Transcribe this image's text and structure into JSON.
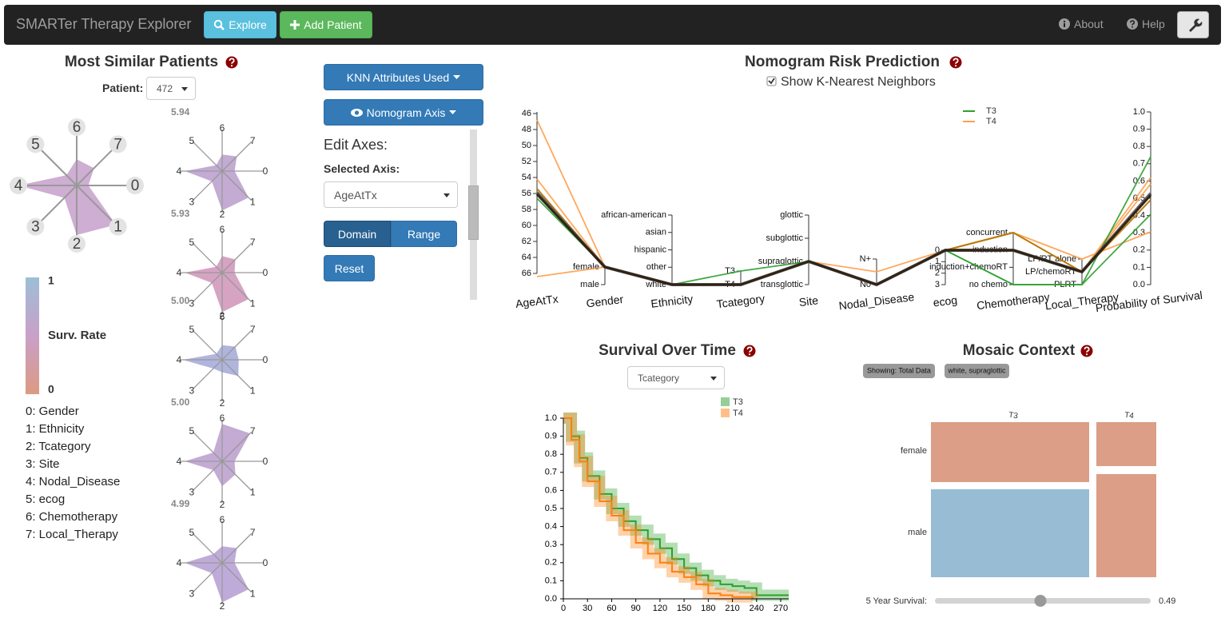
{
  "navbar": {
    "brand": "SMARTer Therapy Explorer",
    "explore": "Explore",
    "add_patient": "Add Patient",
    "about": "About",
    "help": "Help"
  },
  "similar_patients": {
    "title": "Most Similar Patients",
    "patient_label": "Patient:",
    "patient_value": "472",
    "radar_axes": [
      "0",
      "1",
      "2",
      "3",
      "4",
      "5",
      "6",
      "7"
    ],
    "scores": [
      "5.94",
      "5.93",
      "5.00",
      "5.00",
      "4.99"
    ],
    "legend": {
      "max": "1",
      "label": "Surv. Rate",
      "min": "0"
    },
    "attributes": [
      "0: Gender",
      "1: Ethnicity",
      "2: Tcategory",
      "3: Site",
      "4: Nodal_Disease",
      "5: ecog",
      "6: Chemotherapy",
      "7: Local_Therapy"
    ]
  },
  "controls": {
    "knn": "KNN Attributes Used",
    "nomogram_axis": "Nomogram Axis",
    "edit_axes": "Edit Axes:",
    "selected_axis_label": "Selected Axis:",
    "selected_axis": "AgeAtTx",
    "domain": "Domain",
    "range": "Range",
    "reset": "Reset"
  },
  "nomogram": {
    "title": "Nomogram Risk Prediction",
    "checkbox_label": "Show K-Nearest Neighbors",
    "legend": [
      "T3",
      "T4"
    ],
    "axes": [
      {
        "name": "AgeAtTx",
        "ticks": [
          "46",
          "48",
          "50",
          "52",
          "54",
          "56",
          "58",
          "60",
          "62",
          "64",
          "66"
        ]
      },
      {
        "name": "Gender",
        "ticks": [
          "female",
          "male"
        ]
      },
      {
        "name": "Ethnicity",
        "ticks": [
          "african-american",
          "asian",
          "hispanic",
          "other",
          "white"
        ]
      },
      {
        "name": "Tcategory",
        "ticks": [
          "T3",
          "T4"
        ]
      },
      {
        "name": "Site",
        "ticks": [
          "glottic",
          "subglottic",
          "supraglottic",
          "transglottic"
        ]
      },
      {
        "name": "Nodal_Disease",
        "ticks": [
          "N+",
          "N0"
        ]
      },
      {
        "name": "ecog",
        "ticks": [
          "0",
          "1",
          "2",
          "3"
        ]
      },
      {
        "name": "Chemotherapy",
        "ticks": [
          "concurrent",
          "induction",
          "induction+chemoRT",
          "no chemo"
        ]
      },
      {
        "name": "Local_Therapy",
        "ticks": [
          "LP/RT alone",
          "LP/chemoRT",
          "PLRT"
        ]
      },
      {
        "name": "Probability of Survival",
        "ticks": [
          "1.0",
          "0.9",
          "0.8",
          "0.7",
          "0.6",
          "0.5",
          "0.4",
          "0.3",
          "0.2",
          "0.1",
          "0.0"
        ]
      }
    ]
  },
  "survival": {
    "title": "Survival Over Time",
    "select": "Tcategory",
    "xticks": [
      0,
      30,
      60,
      90,
      120,
      150,
      180,
      210,
      240,
      270
    ],
    "yticks": [
      "0.0",
      "0.1",
      "0.2",
      "0.3",
      "0.4",
      "0.5",
      "0.6",
      "0.7",
      "0.8",
      "0.9",
      "1.0"
    ],
    "series": [
      {
        "name": "T3",
        "color": "#2ca02c",
        "x": [
          0,
          10,
          20,
          30,
          45,
          60,
          75,
          90,
          105,
          120,
          135,
          150,
          165,
          180,
          195,
          210,
          225,
          240,
          280
        ],
        "y": [
          1,
          0.9,
          0.78,
          0.68,
          0.58,
          0.5,
          0.43,
          0.38,
          0.33,
          0.28,
          0.22,
          0.17,
          0.13,
          0.1,
          0.08,
          0.07,
          0.06,
          0.02,
          0.02
        ]
      },
      {
        "name": "T4",
        "color": "#ff7f0e",
        "x": [
          0,
          10,
          20,
          30,
          45,
          60,
          75,
          90,
          105,
          120,
          135,
          150,
          165,
          180,
          195,
          210,
          230,
          235
        ],
        "y": [
          1,
          0.88,
          0.76,
          0.65,
          0.54,
          0.46,
          0.38,
          0.31,
          0.25,
          0.2,
          0.15,
          0.12,
          0.08,
          0.03,
          0.02,
          0.01,
          0.01,
          0
        ]
      }
    ]
  },
  "mosaic": {
    "title": "Mosaic Context",
    "tags": [
      "Showing: Total Data",
      "white, supraglottic"
    ],
    "columns": [
      "T3",
      "T4"
    ],
    "rows": [
      "female",
      "male"
    ],
    "slider_label": "5 Year Survival:",
    "slider_value": "0.49"
  }
}
